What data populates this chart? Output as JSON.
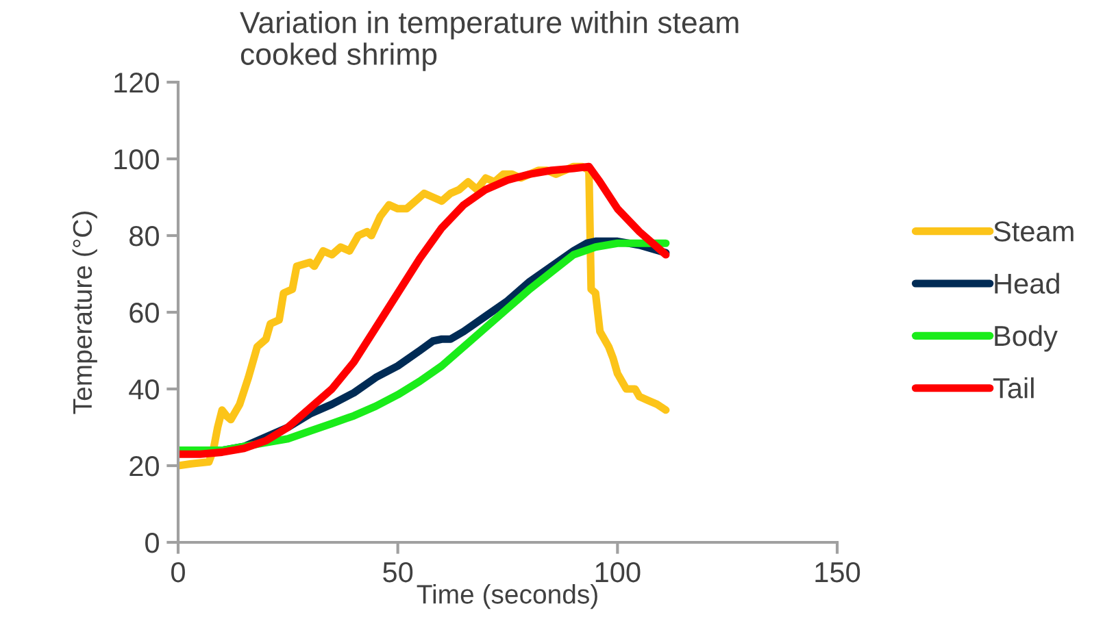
{
  "chart_data": {
    "type": "line",
    "title": "Variation in temperature within steam cooked shrimp",
    "xlabel": "Time (seconds)",
    "ylabel": "Temperature (°C)",
    "xlim": [
      0,
      150
    ],
    "xticks": [
      0,
      50,
      100,
      150
    ],
    "ylim": [
      0,
      120
    ],
    "yticks": [
      0,
      20,
      40,
      60,
      80,
      100,
      120
    ],
    "grid": false,
    "legend": "right",
    "marker": "none",
    "line_style": "solid",
    "series": [
      {
        "name": "Steam",
        "color": "#fcc419",
        "x": [
          0,
          3,
          7,
          8,
          9,
          10,
          11,
          12,
          14,
          16,
          18,
          20,
          21,
          23,
          24,
          26,
          27,
          30,
          31,
          33,
          35,
          37,
          39,
          41,
          43,
          44,
          46,
          48,
          50,
          52,
          54,
          56,
          58,
          60,
          62,
          64,
          66,
          68,
          70,
          72,
          74,
          76,
          78,
          80,
          82,
          84,
          86,
          88,
          90,
          92,
          93.5,
          94,
          95,
          96,
          98,
          99,
          100,
          102,
          104,
          105,
          107,
          109,
          111
        ],
        "values": [
          20,
          20.5,
          21,
          24,
          30,
          34.5,
          33,
          32,
          36,
          43,
          51,
          53,
          57,
          58,
          65,
          66,
          72,
          73,
          72,
          76,
          75,
          77,
          76,
          80,
          81,
          80,
          85,
          88,
          87,
          87,
          89,
          91,
          90,
          89,
          91,
          92,
          94,
          92,
          95,
          94,
          96,
          96,
          95,
          96,
          97,
          97,
          96,
          97,
          98,
          98,
          97,
          66,
          65,
          55,
          51,
          48,
          44,
          40,
          40,
          38,
          37,
          36,
          34.5
        ]
      },
      {
        "name": "Head",
        "color": "#002b55",
        "x": [
          5,
          10,
          15,
          20,
          25,
          30,
          35,
          40,
          45,
          50,
          55,
          58,
          60,
          62,
          65,
          70,
          75,
          80,
          85,
          90,
          93,
          95,
          100,
          105,
          111
        ],
        "values": [
          24,
          24,
          25,
          27.5,
          30,
          33.5,
          36,
          39,
          43,
          46,
          50,
          52.5,
          53,
          53,
          55,
          59,
          63,
          68,
          72,
          76,
          78,
          78.5,
          78.5,
          77.5,
          75.5
        ]
      },
      {
        "name": "Body",
        "color": "#1aec1a",
        "x": [
          0,
          10,
          15,
          20,
          25,
          30,
          35,
          40,
          45,
          50,
          55,
          60,
          65,
          70,
          75,
          80,
          85,
          90,
          95,
          100,
          105,
          111
        ],
        "values": [
          24,
          24,
          25,
          26,
          27,
          29,
          31,
          33,
          35.5,
          38.5,
          42,
          46,
          51,
          56,
          61,
          66,
          70.5,
          75,
          77,
          78,
          78,
          78
        ]
      },
      {
        "name": "Tail",
        "color": "#ff0000",
        "x": [
          0,
          5,
          10,
          15,
          20,
          25,
          30,
          35,
          40,
          45,
          50,
          55,
          60,
          65,
          70,
          75,
          80,
          85,
          90,
          93.5,
          96,
          100,
          105,
          111
        ],
        "values": [
          23,
          23,
          23.5,
          24.5,
          26.5,
          30,
          35,
          40,
          47,
          56,
          65,
          74,
          82,
          88,
          92,
          94.5,
          96,
          97,
          97.5,
          98,
          94,
          87,
          81,
          75
        ]
      }
    ]
  }
}
